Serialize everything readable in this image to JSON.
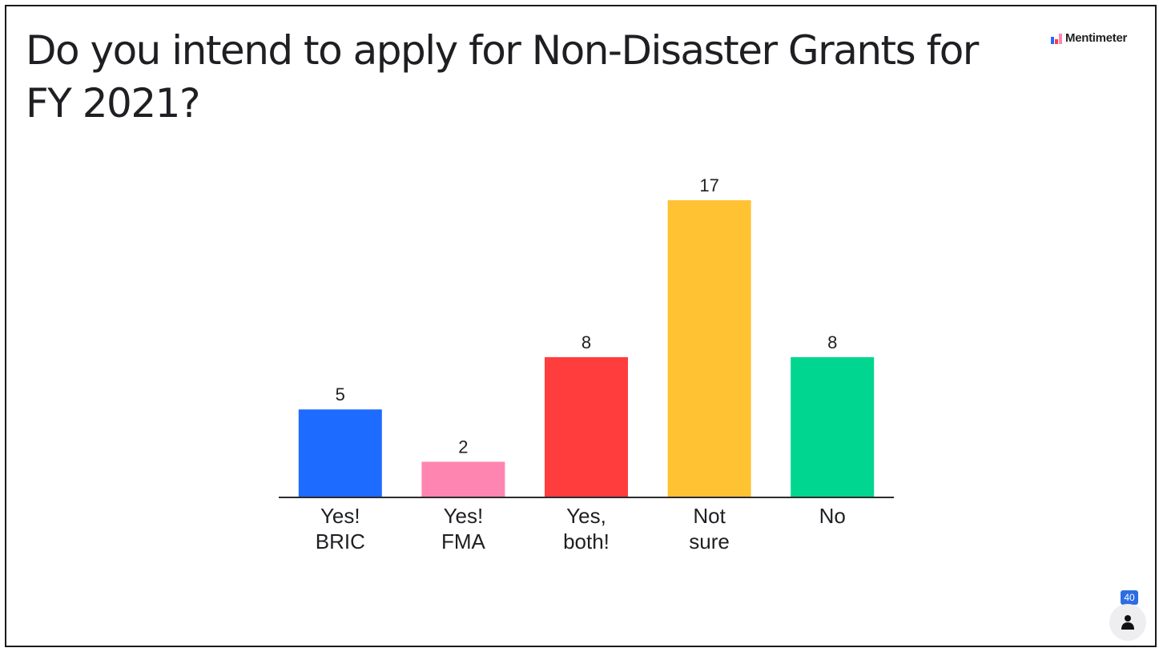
{
  "slide": {
    "title": "Do you intend to apply for Non-Disaster Grants for FY 2021?"
  },
  "brand": {
    "icon": "mentimeter-logo-icon",
    "label": "Mentimeter"
  },
  "participants": {
    "count": "40",
    "icon": "person-icon"
  },
  "chart_data": {
    "type": "bar",
    "categories": [
      [
        "Yes!",
        "BRIC"
      ],
      [
        "Yes!",
        "FMA"
      ],
      [
        "Yes,",
        "both!"
      ],
      [
        "Not",
        "sure"
      ],
      [
        "No"
      ]
    ],
    "values": [
      5,
      2,
      8,
      17,
      8
    ],
    "colors": [
      "#1e6bff",
      "#ff85b1",
      "#ff3d3d",
      "#ffc233",
      "#00d68f"
    ],
    "title": "",
    "xlabel": "",
    "ylabel": "",
    "ylim": [
      0,
      17
    ],
    "grid": false,
    "legend": "none"
  }
}
